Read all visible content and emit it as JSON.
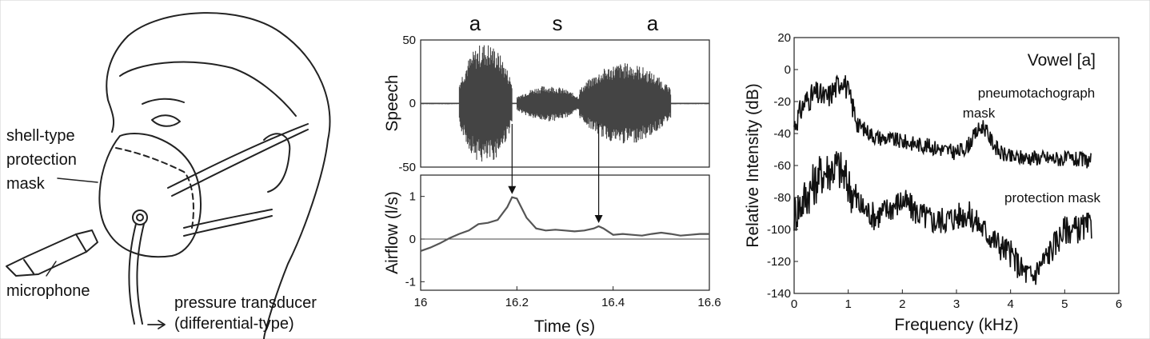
{
  "illustration": {
    "labels": {
      "mask_line1": "shell-type",
      "mask_line2": "protection",
      "mask_line3": "mask",
      "microphone": "microphone",
      "transducer_line1": "pressure transducer",
      "transducer_line2": "(differential-type)"
    }
  },
  "chart_data": [
    {
      "type": "line",
      "panel": "speech",
      "segment_labels": [
        "a",
        "s",
        "a"
      ],
      "ylabel": "Speech",
      "ylim": [
        -50,
        50
      ],
      "y_ticks": [
        "50",
        "0",
        "-50"
      ],
      "xlim": [
        16.0,
        16.6
      ],
      "segments": [
        {
          "label": "a",
          "start": 16.08,
          "end": 16.19,
          "peak_amplitude": 48
        },
        {
          "label": "s",
          "start": 16.2,
          "end": 16.33,
          "peak_amplitude": 14
        },
        {
          "label": "a",
          "start": 16.33,
          "end": 16.52,
          "peak_amplitude": 32
        }
      ]
    },
    {
      "type": "line",
      "panel": "airflow",
      "xlabel": "Time (s)",
      "ylabel": "Airflow (l/s)",
      "xlim": [
        16.0,
        16.6
      ],
      "ylim": [
        -1.2,
        1.5
      ],
      "x_ticks": [
        "16",
        "16.2",
        "16.4",
        "16.6"
      ],
      "y_ticks": [
        "1",
        "0",
        "-1"
      ],
      "series": [
        {
          "x": [
            16.0,
            16.02,
            16.04,
            16.06,
            16.08,
            16.1,
            16.12,
            16.14,
            16.16,
            16.18,
            16.19,
            16.2,
            16.22,
            16.24,
            16.26,
            16.28,
            16.3,
            16.32,
            16.34,
            16.36,
            16.37,
            16.38,
            16.4,
            16.42,
            16.44,
            16.46,
            16.48,
            16.5,
            16.52,
            16.54,
            16.56,
            16.58,
            16.6
          ],
          "y": [
            -0.28,
            -0.2,
            -0.1,
            0.02,
            0.12,
            0.2,
            0.35,
            0.38,
            0.45,
            0.75,
            0.98,
            0.95,
            0.5,
            0.25,
            0.2,
            0.22,
            0.2,
            0.18,
            0.2,
            0.25,
            0.3,
            0.25,
            0.1,
            0.12,
            0.1,
            0.08,
            0.12,
            0.15,
            0.12,
            0.08,
            0.1,
            0.12,
            0.12
          ]
        }
      ],
      "arrows_at_time": [
        16.19,
        16.37
      ]
    },
    {
      "type": "line",
      "panel": "spectrum",
      "annotation": "Vowel [a]",
      "xlabel": "Frequency (kHz)",
      "ylabel": "Relative Intensity (dB)",
      "xlim": [
        0,
        6
      ],
      "ylim": [
        -140,
        20
      ],
      "x_ticks": [
        "0",
        "1",
        "2",
        "3",
        "4",
        "5",
        "6"
      ],
      "y_ticks": [
        "20",
        "0",
        "-20",
        "-40",
        "-60",
        "-80",
        "-100",
        "-120",
        "-140"
      ],
      "series": [
        {
          "name": "pneumotachograph mask",
          "label_line1": "pneumotachograph",
          "label_line2": "mask",
          "x": [
            0,
            0.2,
            0.4,
            0.6,
            0.8,
            0.9,
            1.0,
            1.1,
            1.2,
            1.5,
            2.0,
            2.5,
            3.0,
            3.2,
            3.4,
            3.5,
            3.6,
            3.8,
            4.0,
            4.5,
            5.0,
            5.5
          ],
          "y": [
            -35,
            -20,
            -15,
            -18,
            -10,
            -5,
            -15,
            -25,
            -35,
            -42,
            -45,
            -48,
            -52,
            -48,
            -38,
            -35,
            -42,
            -52,
            -55,
            -55,
            -56,
            -57
          ]
        },
        {
          "name": "protection mask",
          "label": "protection mask",
          "x": [
            0,
            0.3,
            0.5,
            0.8,
            1.0,
            1.2,
            1.5,
            2.0,
            2.3,
            2.6,
            3.0,
            3.2,
            3.5,
            3.8,
            4.0,
            4.2,
            4.4,
            4.6,
            4.8,
            5.0,
            5.2,
            5.5
          ],
          "y": [
            -90,
            -75,
            -65,
            -60,
            -72,
            -85,
            -92,
            -82,
            -90,
            -95,
            -92,
            -90,
            -100,
            -110,
            -115,
            -125,
            -130,
            -120,
            -110,
            -100,
            -100,
            -98
          ]
        }
      ]
    }
  ]
}
